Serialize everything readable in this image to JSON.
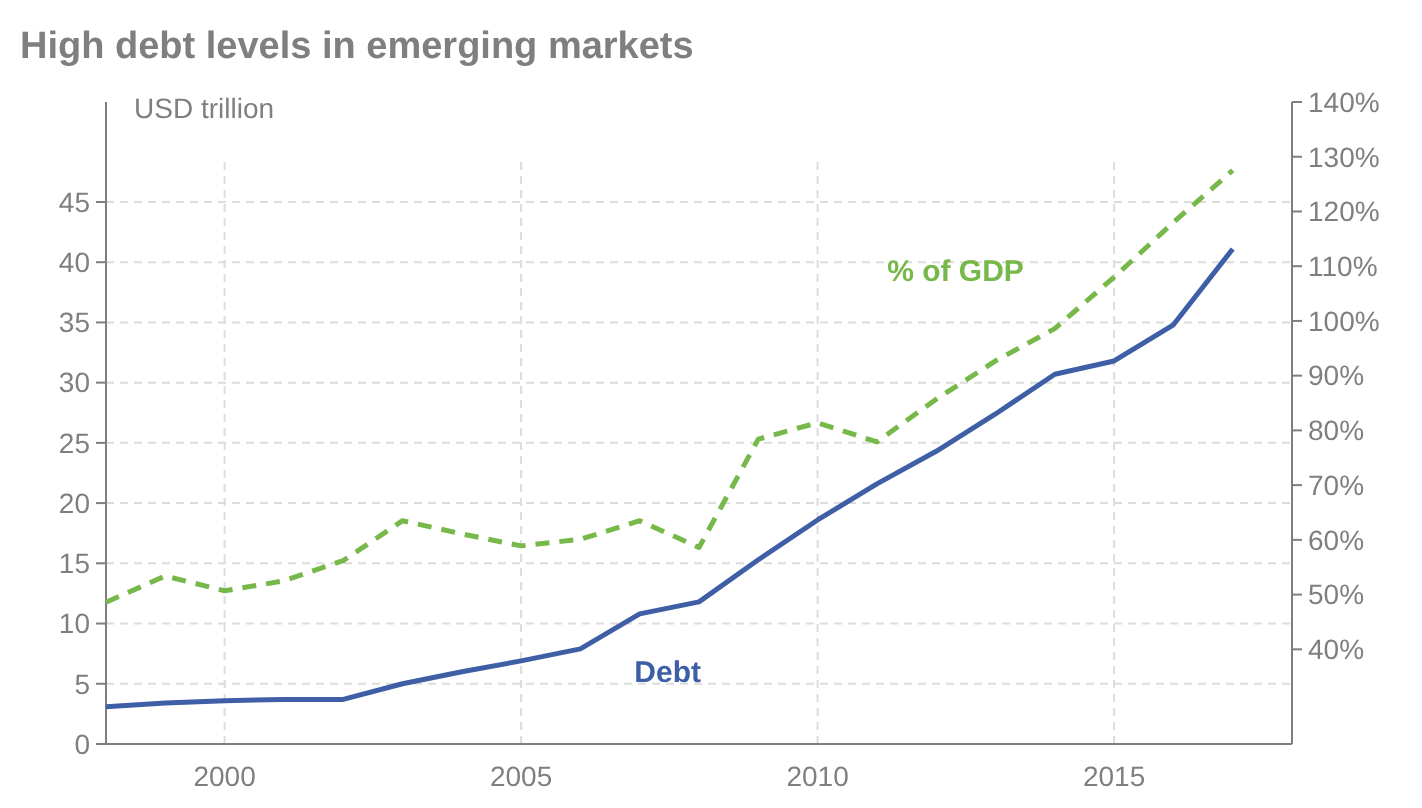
{
  "chart_data": {
    "type": "line",
    "title": "High debt levels in emerging markets",
    "ylabel": "USD trillion",
    "x": [
      1998,
      1999,
      2000,
      2001,
      2002,
      2003,
      2004,
      2005,
      2006,
      2007,
      2008,
      2009,
      2010,
      2011,
      2012,
      2013,
      2014,
      2015,
      2016,
      2017
    ],
    "xlim": [
      1998,
      2018
    ],
    "xticks": [
      2000,
      2005,
      2010,
      2015
    ],
    "ylim": [
      0,
      53.3
    ],
    "yticks": [
      0,
      5,
      10,
      15,
      20,
      25,
      30,
      35,
      40,
      45
    ],
    "y2lim": [
      22.7,
      140
    ],
    "y2ticks": [
      {
        "value": 40,
        "label": "40%"
      },
      {
        "value": 50,
        "label": "50%"
      },
      {
        "value": 60,
        "label": "60%"
      },
      {
        "value": 70,
        "label": "70%"
      },
      {
        "value": 80,
        "label": "80%"
      },
      {
        "value": 90,
        "label": "90%"
      },
      {
        "value": 100,
        "label": "100%"
      },
      {
        "value": 110,
        "label": "110%"
      },
      {
        "value": 120,
        "label": "120%"
      },
      {
        "value": 130,
        "label": "130%"
      },
      {
        "value": 140,
        "label": "140%"
      }
    ],
    "series": [
      {
        "name": "Debt",
        "color": "#3e5fa6",
        "line_style": "solid",
        "values": [
          3.1,
          3.4,
          3.6,
          3.7,
          3.7,
          5.0,
          6.0,
          6.9,
          7.9,
          10.8,
          11.8,
          15.3,
          18.6,
          21.6,
          24.3,
          27.4,
          30.7,
          31.8,
          34.8,
          41.1
        ]
      },
      {
        "name": "% of GDP",
        "color": "#77b84a",
        "line_style": "dashed",
        "axis": "y2",
        "values": [
          48.6,
          53.4,
          50.7,
          52.5,
          56.2,
          63.5,
          61.1,
          58.9,
          60.1,
          63.5,
          58.6,
          78.4,
          81.4,
          77.9,
          85.7,
          92.7,
          98.6,
          108,
          118,
          127.5
        ]
      }
    ],
    "grid": true,
    "legend": false
  }
}
